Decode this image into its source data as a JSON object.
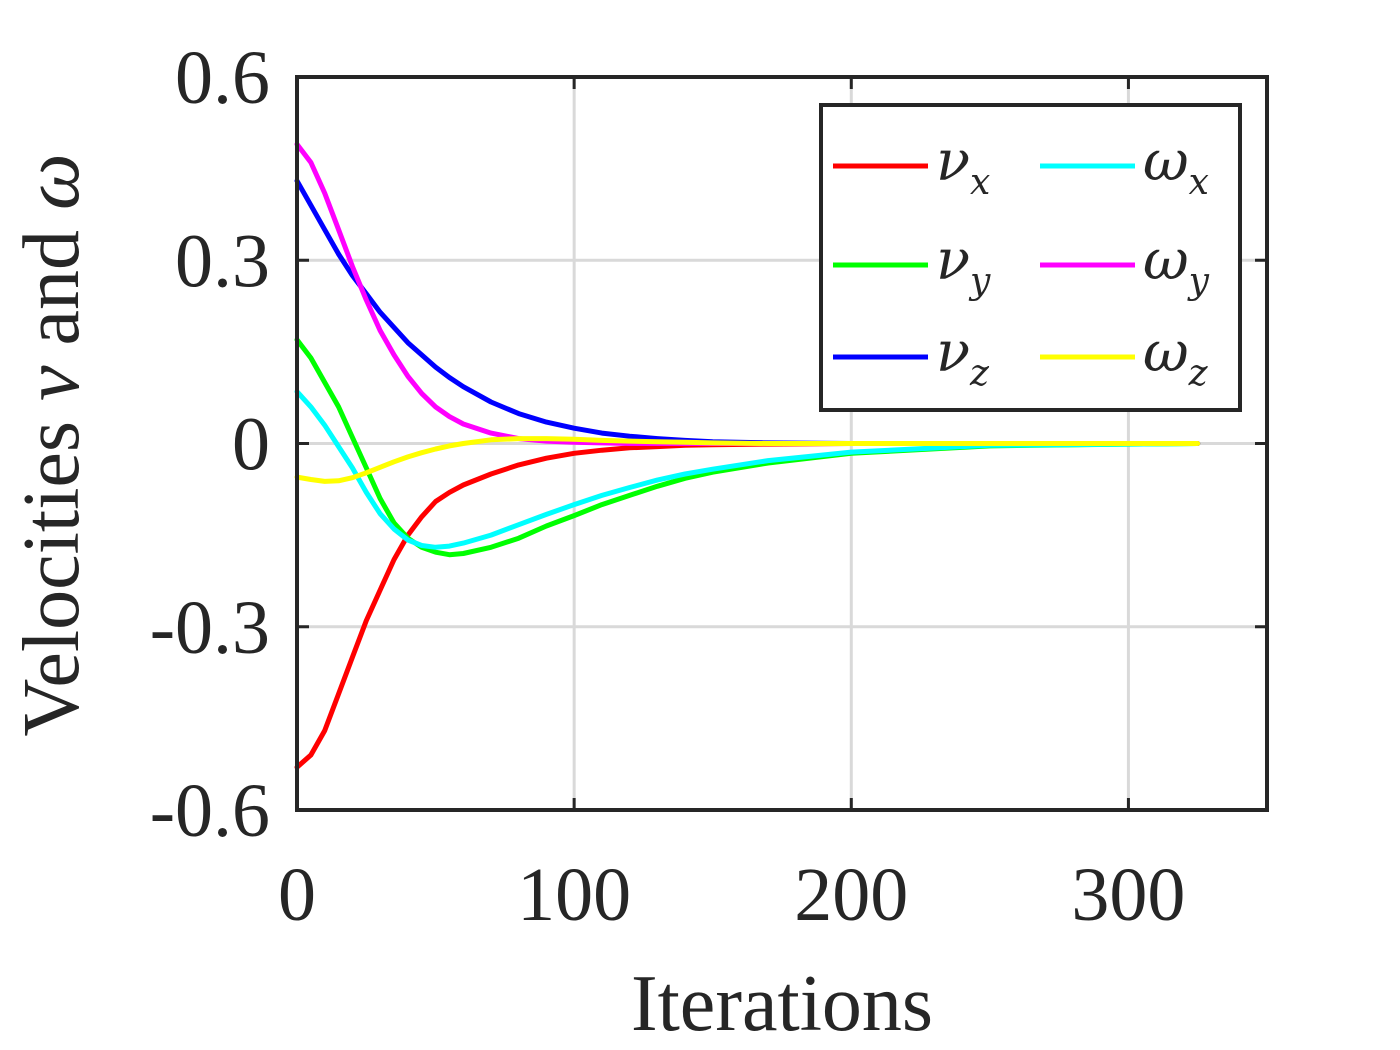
{
  "chart_data": {
    "type": "line",
    "xlabel": "Iterations",
    "ylabel_prefix": "Velocities ",
    "ylabel_nu": "ν",
    "ylabel_mid": " and ",
    "ylabel_omega": "ω",
    "xlim": [
      0,
      350
    ],
    "ylim": [
      -0.6,
      0.6
    ],
    "xticks": [
      0,
      100,
      200,
      300
    ],
    "xtick_labels": [
      "0",
      "100",
      "200",
      "300"
    ],
    "yticks": [
      -0.6,
      -0.3,
      0,
      0.3,
      0.6
    ],
    "ytick_labels": [
      "-0.6",
      "-0.3",
      "0",
      "0.3",
      "0.6"
    ],
    "grid": true,
    "legend_position": "top-right",
    "series": [
      {
        "symbol": "ν",
        "sub": "x",
        "color": "#ff0000",
        "x": [
          0,
          5,
          10,
          15,
          20,
          25,
          30,
          35,
          40,
          45,
          50,
          55,
          60,
          70,
          80,
          90,
          100,
          110,
          120,
          130,
          140,
          150,
          170,
          200,
          250,
          300,
          325
        ],
        "y": [
          -0.53,
          -0.51,
          -0.47,
          -0.41,
          -0.35,
          -0.29,
          -0.24,
          -0.19,
          -0.15,
          -0.12,
          -0.095,
          -0.08,
          -0.068,
          -0.05,
          -0.035,
          -0.024,
          -0.016,
          -0.011,
          -0.007,
          -0.005,
          -0.003,
          -0.002,
          -0.001,
          0,
          0,
          0,
          0
        ]
      },
      {
        "symbol": "ν",
        "sub": "y",
        "color": "#00ff00",
        "x": [
          0,
          5,
          10,
          15,
          20,
          25,
          30,
          35,
          40,
          45,
          50,
          55,
          60,
          70,
          80,
          90,
          100,
          110,
          120,
          130,
          140,
          150,
          170,
          200,
          250,
          300,
          325
        ],
        "y": [
          0.17,
          0.14,
          0.1,
          0.06,
          0.01,
          -0.04,
          -0.09,
          -0.13,
          -0.155,
          -0.17,
          -0.178,
          -0.182,
          -0.18,
          -0.17,
          -0.155,
          -0.135,
          -0.118,
          -0.1,
          -0.085,
          -0.07,
          -0.057,
          -0.047,
          -0.032,
          -0.016,
          -0.004,
          -0.001,
          0
        ]
      },
      {
        "symbol": "ν",
        "sub": "z",
        "color": "#0000ff",
        "x": [
          0,
          5,
          10,
          15,
          20,
          25,
          30,
          35,
          40,
          45,
          50,
          55,
          60,
          70,
          80,
          90,
          100,
          110,
          120,
          130,
          140,
          150,
          170,
          200,
          250,
          300,
          325
        ],
        "y": [
          0.43,
          0.39,
          0.35,
          0.31,
          0.275,
          0.245,
          0.215,
          0.19,
          0.165,
          0.145,
          0.125,
          0.108,
          0.093,
          0.068,
          0.049,
          0.035,
          0.025,
          0.017,
          0.012,
          0.008,
          0.005,
          0.003,
          0.001,
          0,
          0,
          0,
          0
        ]
      },
      {
        "symbol": "ω",
        "sub": "x",
        "color": "#00ffff",
        "x": [
          0,
          5,
          10,
          15,
          20,
          25,
          30,
          35,
          40,
          45,
          50,
          55,
          60,
          70,
          80,
          90,
          100,
          110,
          120,
          130,
          140,
          150,
          170,
          200,
          250,
          300,
          325
        ],
        "y": [
          0.085,
          0.06,
          0.03,
          -0.005,
          -0.04,
          -0.08,
          -0.115,
          -0.14,
          -0.158,
          -0.167,
          -0.17,
          -0.168,
          -0.163,
          -0.15,
          -0.133,
          -0.116,
          -0.1,
          -0.085,
          -0.072,
          -0.06,
          -0.05,
          -0.042,
          -0.028,
          -0.014,
          -0.003,
          -0.001,
          0
        ]
      },
      {
        "symbol": "ω",
        "sub": "y",
        "color": "#ff00ff",
        "x": [
          0,
          5,
          10,
          15,
          20,
          25,
          30,
          35,
          40,
          45,
          50,
          55,
          60,
          70,
          80,
          90,
          100,
          110,
          120,
          130,
          140,
          150,
          170,
          200,
          250,
          300,
          325
        ],
        "y": [
          0.49,
          0.46,
          0.41,
          0.35,
          0.29,
          0.235,
          0.185,
          0.145,
          0.11,
          0.082,
          0.06,
          0.044,
          0.032,
          0.017,
          0.008,
          0.004,
          0.002,
          0.001,
          0,
          0,
          0,
          0,
          0,
          0,
          0,
          0,
          0
        ]
      },
      {
        "symbol": "ω",
        "sub": "z",
        "color": "#ffff00",
        "x": [
          0,
          5,
          10,
          15,
          20,
          25,
          30,
          35,
          40,
          45,
          50,
          55,
          60,
          70,
          80,
          90,
          100,
          110,
          120,
          130,
          140,
          150,
          170,
          200,
          250,
          300,
          325
        ],
        "y": [
          -0.055,
          -0.059,
          -0.062,
          -0.061,
          -0.056,
          -0.048,
          -0.039,
          -0.03,
          -0.022,
          -0.015,
          -0.009,
          -0.004,
          0,
          0.006,
          0.008,
          0.008,
          0.007,
          0.005,
          0.004,
          0.003,
          0.002,
          0.001,
          0,
          0,
          0,
          0,
          0
        ]
      }
    ]
  }
}
